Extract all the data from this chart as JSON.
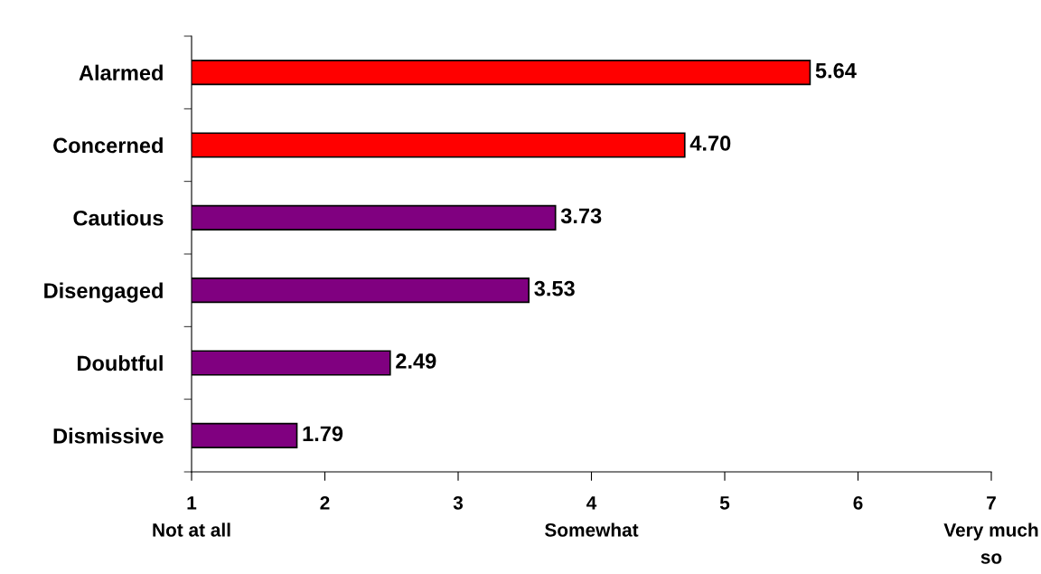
{
  "chart_data": {
    "type": "bar",
    "orientation": "horizontal",
    "categories": [
      "Alarmed",
      "Concerned",
      "Cautious",
      "Disengaged",
      "Doubtful",
      "Dismissive"
    ],
    "values": [
      5.64,
      4.7,
      3.73,
      3.53,
      2.49,
      1.79
    ],
    "value_labels": [
      "5.64",
      "4.70",
      "3.73",
      "3.53",
      "2.49",
      "1.79"
    ],
    "colors": [
      "#ff0000",
      "#ff0000",
      "#800080",
      "#800080",
      "#800080",
      "#800080"
    ],
    "xlim": [
      1,
      7
    ],
    "xticks": [
      {
        "value": 1,
        "label": "1\nNot at all"
      },
      2,
      3,
      {
        "value": 4,
        "label": "4\nSomewhat"
      },
      5,
      6,
      {
        "value": 7,
        "label": "7\nVery much\nso"
      }
    ],
    "grid": false,
    "legend": false
  }
}
